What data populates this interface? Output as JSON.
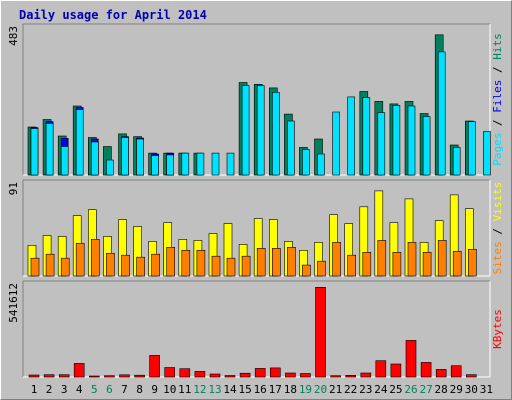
{
  "chart_data": {
    "type": "bar",
    "title": "Daily usage for April 2014",
    "categories": [
      "1",
      "2",
      "3",
      "4",
      "5",
      "6",
      "7",
      "8",
      "9",
      "10",
      "11",
      "12",
      "13",
      "14",
      "15",
      "16",
      "17",
      "18",
      "19",
      "20",
      "21",
      "22",
      "23",
      "24",
      "25",
      "26",
      "27",
      "28",
      "29",
      "30",
      "31"
    ],
    "weekend_days": [
      "5",
      "6",
      "12",
      "13",
      "19",
      "20",
      "26",
      "27"
    ],
    "panels": [
      {
        "name": "hits-files-pages",
        "ymax_label": "483",
        "ylim": [
          0,
          483
        ],
        "right_labels": [
          "Pages",
          "Files",
          "Hits"
        ],
        "series": [
          {
            "name": "Hits",
            "color": "#00805c",
            "values": [
              160,
              185,
              130,
              230,
              125,
              95,
              137,
              128,
              73,
              73,
              73,
              73,
              0,
              0,
              308,
              302,
              290,
              203,
              92,
              120,
              0,
              0,
              278,
              245,
              237,
              245,
              205,
              467,
              100,
              180,
              0
            ]
          },
          {
            "name": "Files",
            "color": "#0000ff",
            "values": [
              158,
              178,
              122,
              225,
              120,
              0,
              128,
              123,
              70,
              73,
              0,
              0,
              0,
              0,
              0,
              0,
              0,
              0,
              0,
              0,
              0,
              0,
              0,
              0,
              0,
              0,
              0,
              0,
              0,
              0,
              0
            ]
          },
          {
            "name": "Pages",
            "color": "#00e0ff",
            "values": [
              155,
              172,
              95,
              218,
              110,
              50,
              125,
              120,
              65,
              67,
              73,
              73,
              73,
              73,
              298,
              298,
              275,
              180,
              85,
              70,
              210,
              260,
              258,
              208,
              232,
              230,
              195,
              410,
              92,
              178,
              145
            ]
          }
        ]
      },
      {
        "name": "visits-sites",
        "ymax_label": "91",
        "ylim": [
          0,
          91
        ],
        "right_labels": [
          "Sites",
          "Visits"
        ],
        "series": [
          {
            "name": "Visits",
            "color": "#ffff00",
            "values": [
              31,
              41,
              40,
              61,
              67,
              40,
              57,
              50,
              35,
              54,
              37,
              36,
              43,
              53,
              32,
              58,
              57,
              35,
              26,
              34,
              62,
              53,
              70,
              86,
              54,
              78,
              34,
              56,
              82,
              68,
              0
            ]
          },
          {
            "name": "Sites",
            "color": "#ff8000",
            "values": [
              18,
              22,
              18,
              33,
              37,
              23,
              21,
              19,
              22,
              29,
              26,
              26,
              20,
              18,
              20,
              28,
              28,
              29,
              11,
              15,
              34,
              21,
              24,
              36,
              24,
              34,
              24,
              36,
              25,
              27,
              0
            ]
          }
        ]
      },
      {
        "name": "kbytes",
        "ymax_label": "541612",
        "ylim": [
          0,
          541612
        ],
        "right_labels": [
          "KBytes"
        ],
        "series": [
          {
            "name": "KBytes",
            "color": "#ff0000",
            "values": [
              12000,
              14000,
              14000,
              82000,
              6000,
              8000,
              13000,
              11000,
              130000,
              57000,
              50000,
              34000,
              18000,
              9000,
              23000,
              52000,
              55000,
              24000,
              21000,
              540000,
              8000,
              10000,
              24000,
              98000,
              78000,
              220000,
              88000,
              46000,
              68000,
              14000,
              0
            ]
          }
        ]
      }
    ]
  }
}
